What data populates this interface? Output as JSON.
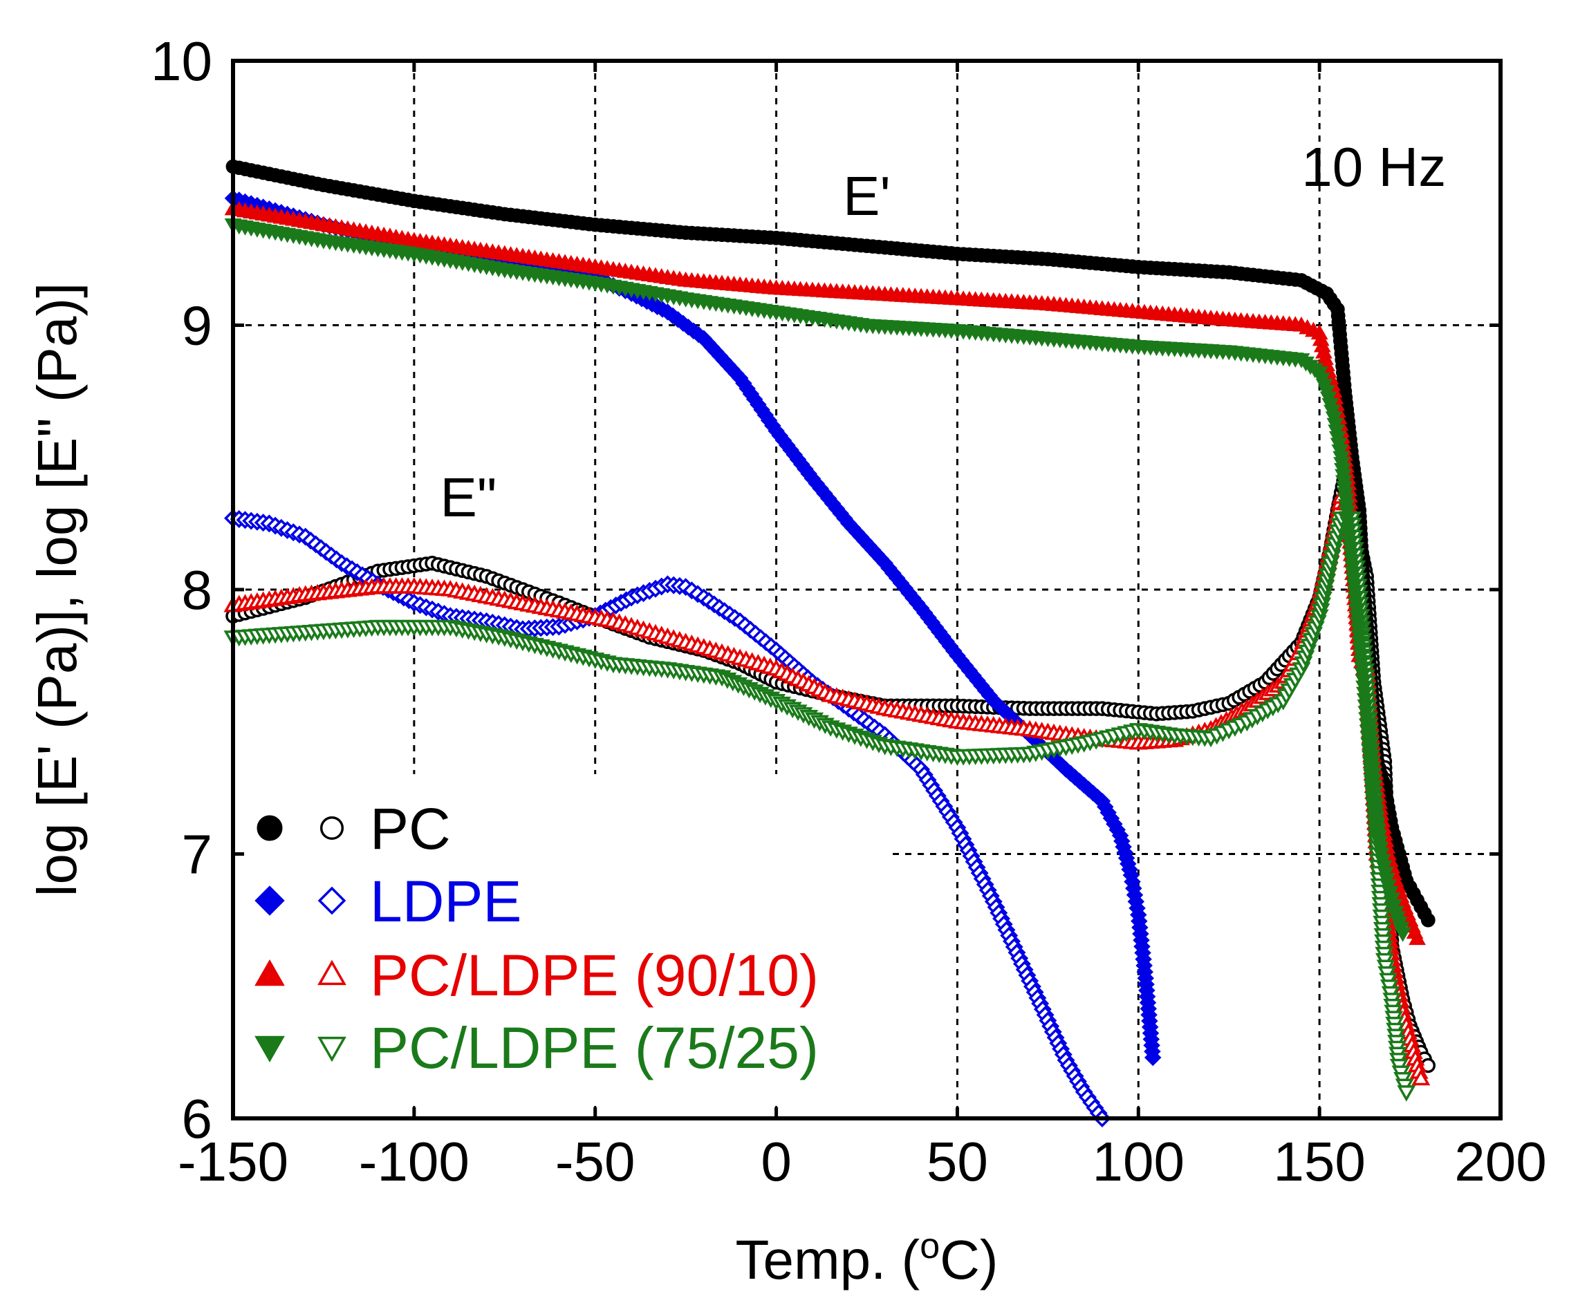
{
  "chart_data": {
    "type": "scatter",
    "title": "",
    "xlabel": "Temp. (",
    "xlabel_sup": "o",
    "xlabel_tail": "C)",
    "ylabel": "log [E' (Pa)], log [E\" (Pa)]",
    "xlim": [
      -150,
      200
    ],
    "ylim": [
      6,
      10
    ],
    "x_ticks": [
      -150,
      -100,
      -50,
      0,
      50,
      100,
      150,
      200
    ],
    "y_ticks": [
      6,
      7,
      8,
      9,
      10
    ],
    "x_tick_labels": [
      "-150",
      "-100",
      "-50",
      "0",
      "50",
      "100",
      "150",
      "200"
    ],
    "y_tick_labels": [
      "6",
      "7",
      "8",
      "9",
      "10"
    ],
    "grid": true,
    "legend_position": "bottom-left",
    "annotations": {
      "storage": "E'",
      "loss": "E\"",
      "frequency": "10 Hz"
    },
    "series": [
      {
        "name": "PC",
        "color": "#000000",
        "marker": "circle",
        "E_storage": [
          [
            -150,
            9.6
          ],
          [
            -125,
            9.53
          ],
          [
            -100,
            9.47
          ],
          [
            -75,
            9.42
          ],
          [
            -50,
            9.38
          ],
          [
            -25,
            9.35
          ],
          [
            0,
            9.33
          ],
          [
            25,
            9.3
          ],
          [
            50,
            9.27
          ],
          [
            75,
            9.25
          ],
          [
            100,
            9.22
          ],
          [
            125,
            9.2
          ],
          [
            145,
            9.17
          ],
          [
            152,
            9.12
          ],
          [
            155,
            9.06
          ],
          [
            157,
            8.75
          ],
          [
            159,
            8.5
          ],
          [
            161,
            8.3
          ],
          [
            162,
            8.05
          ],
          [
            164,
            7.68
          ],
          [
            166,
            7.35
          ],
          [
            168,
            7.25
          ],
          [
            170,
            7.1
          ],
          [
            172,
            7.0
          ],
          [
            174,
            6.9
          ],
          [
            176,
            6.85
          ],
          [
            178,
            6.8
          ],
          [
            180,
            6.75
          ]
        ],
        "E_loss": [
          [
            -150,
            7.9
          ],
          [
            -130,
            7.97
          ],
          [
            -110,
            8.07
          ],
          [
            -95,
            8.1
          ],
          [
            -80,
            8.05
          ],
          [
            -70,
            8.0
          ],
          [
            -60,
            7.95
          ],
          [
            -45,
            7.87
          ],
          [
            -35,
            7.82
          ],
          [
            -20,
            7.77
          ],
          [
            -10,
            7.72
          ],
          [
            0,
            7.65
          ],
          [
            15,
            7.6
          ],
          [
            30,
            7.56
          ],
          [
            50,
            7.56
          ],
          [
            70,
            7.55
          ],
          [
            90,
            7.55
          ],
          [
            105,
            7.53
          ],
          [
            115,
            7.54
          ],
          [
            125,
            7.57
          ],
          [
            135,
            7.65
          ],
          [
            145,
            7.8
          ],
          [
            150,
            7.97
          ],
          [
            153,
            8.15
          ],
          [
            155,
            8.3
          ],
          [
            158,
            8.5
          ],
          [
            160,
            8.25
          ],
          [
            163,
            8.05
          ],
          [
            165,
            7.65
          ],
          [
            168,
            7.35
          ],
          [
            170,
            6.65
          ],
          [
            173,
            6.45
          ],
          [
            175,
            6.35
          ],
          [
            178,
            6.25
          ],
          [
            180,
            6.2
          ]
        ]
      },
      {
        "name": "LDPE",
        "color": "#0000e6",
        "marker": "diamond",
        "E_storage": [
          [
            -150,
            9.48
          ],
          [
            -125,
            9.38
          ],
          [
            -100,
            9.3
          ],
          [
            -75,
            9.24
          ],
          [
            -50,
            9.18
          ],
          [
            -40,
            9.12
          ],
          [
            -30,
            9.05
          ],
          [
            -20,
            8.95
          ],
          [
            -10,
            8.8
          ],
          [
            0,
            8.6
          ],
          [
            10,
            8.42
          ],
          [
            20,
            8.25
          ],
          [
            30,
            8.1
          ],
          [
            40,
            7.93
          ],
          [
            50,
            7.75
          ],
          [
            60,
            7.58
          ],
          [
            70,
            7.45
          ],
          [
            80,
            7.32
          ],
          [
            90,
            7.2
          ],
          [
            95,
            7.07
          ],
          [
            98,
            6.92
          ],
          [
            100,
            6.77
          ],
          [
            102,
            6.53
          ],
          [
            104,
            6.23
          ]
        ],
        "E_loss": [
          [
            -150,
            8.27
          ],
          [
            -140,
            8.25
          ],
          [
            -130,
            8.2
          ],
          [
            -120,
            8.1
          ],
          [
            -110,
            8.02
          ],
          [
            -100,
            7.95
          ],
          [
            -90,
            7.9
          ],
          [
            -80,
            7.88
          ],
          [
            -70,
            7.85
          ],
          [
            -60,
            7.86
          ],
          [
            -50,
            7.9
          ],
          [
            -40,
            7.97
          ],
          [
            -30,
            8.02
          ],
          [
            -25,
            8.01
          ],
          [
            -20,
            7.97
          ],
          [
            -10,
            7.88
          ],
          [
            0,
            7.77
          ],
          [
            10,
            7.65
          ],
          [
            20,
            7.55
          ],
          [
            30,
            7.45
          ],
          [
            40,
            7.32
          ],
          [
            50,
            7.1
          ],
          [
            60,
            6.82
          ],
          [
            70,
            6.52
          ],
          [
            80,
            6.22
          ],
          [
            85,
            6.1
          ],
          [
            90,
            6.0
          ]
        ]
      },
      {
        "name": "PC/LDPE (90/10)",
        "color": "#e60000",
        "marker": "triangle-up",
        "E_storage": [
          [
            -150,
            9.44
          ],
          [
            -125,
            9.38
          ],
          [
            -100,
            9.32
          ],
          [
            -75,
            9.27
          ],
          [
            -50,
            9.22
          ],
          [
            -25,
            9.17
          ],
          [
            0,
            9.14
          ],
          [
            25,
            9.12
          ],
          [
            50,
            9.1
          ],
          [
            75,
            9.08
          ],
          [
            100,
            9.05
          ],
          [
            125,
            9.02
          ],
          [
            145,
            9.0
          ],
          [
            150,
            8.97
          ],
          [
            152,
            8.85
          ],
          [
            154,
            8.75
          ],
          [
            156,
            8.6
          ],
          [
            158,
            8.4
          ],
          [
            160,
            8.05
          ],
          [
            161,
            7.75
          ],
          [
            163,
            7.68
          ],
          [
            165,
            7.35
          ],
          [
            167,
            7.15
          ],
          [
            169,
            7.0
          ],
          [
            171,
            6.9
          ],
          [
            173,
            6.82
          ],
          [
            175,
            6.75
          ],
          [
            177,
            6.68
          ]
        ],
        "E_loss": [
          [
            -150,
            7.94
          ],
          [
            -130,
            7.98
          ],
          [
            -110,
            8.01
          ],
          [
            -100,
            8.01
          ],
          [
            -90,
            8.0
          ],
          [
            -75,
            7.96
          ],
          [
            -60,
            7.92
          ],
          [
            -45,
            7.88
          ],
          [
            -30,
            7.82
          ],
          [
            -15,
            7.76
          ],
          [
            0,
            7.7
          ],
          [
            15,
            7.6
          ],
          [
            30,
            7.55
          ],
          [
            50,
            7.5
          ],
          [
            70,
            7.47
          ],
          [
            85,
            7.44
          ],
          [
            100,
            7.42
          ],
          [
            110,
            7.43
          ],
          [
            120,
            7.47
          ],
          [
            130,
            7.55
          ],
          [
            140,
            7.65
          ],
          [
            145,
            7.78
          ],
          [
            150,
            7.97
          ],
          [
            153,
            8.15
          ],
          [
            156,
            8.35
          ],
          [
            158,
            8.3
          ],
          [
            161,
            7.8
          ],
          [
            163,
            7.7
          ],
          [
            166,
            7.0
          ],
          [
            168,
            6.85
          ],
          [
            170,
            6.6
          ],
          [
            173,
            6.4
          ],
          [
            175,
            6.3
          ],
          [
            177,
            6.2
          ],
          [
            178,
            6.15
          ]
        ]
      },
      {
        "name": "PC/LDPE (75/25)",
        "color": "#1a7a1a",
        "marker": "triangle-down",
        "E_storage": [
          [
            -150,
            9.38
          ],
          [
            -125,
            9.32
          ],
          [
            -100,
            9.27
          ],
          [
            -75,
            9.21
          ],
          [
            -50,
            9.16
          ],
          [
            -25,
            9.1
          ],
          [
            0,
            9.05
          ],
          [
            25,
            9.0
          ],
          [
            50,
            8.98
          ],
          [
            75,
            8.95
          ],
          [
            100,
            8.92
          ],
          [
            125,
            8.9
          ],
          [
            145,
            8.87
          ],
          [
            150,
            8.82
          ],
          [
            152,
            8.75
          ],
          [
            154,
            8.65
          ],
          [
            156,
            8.5
          ],
          [
            158,
            8.25
          ],
          [
            160,
            7.97
          ],
          [
            162,
            7.68
          ],
          [
            165,
            7.2
          ],
          [
            167,
            7.0
          ],
          [
            169,
            6.88
          ],
          [
            171,
            6.78
          ],
          [
            173,
            6.7
          ]
        ],
        "E_loss": [
          [
            -150,
            7.82
          ],
          [
            -130,
            7.84
          ],
          [
            -110,
            7.86
          ],
          [
            -90,
            7.86
          ],
          [
            -75,
            7.82
          ],
          [
            -60,
            7.77
          ],
          [
            -45,
            7.72
          ],
          [
            -30,
            7.7
          ],
          [
            -15,
            7.67
          ],
          [
            0,
            7.58
          ],
          [
            15,
            7.48
          ],
          [
            30,
            7.41
          ],
          [
            50,
            7.37
          ],
          [
            70,
            7.38
          ],
          [
            85,
            7.42
          ],
          [
            100,
            7.47
          ],
          [
            110,
            7.45
          ],
          [
            120,
            7.44
          ],
          [
            130,
            7.5
          ],
          [
            140,
            7.58
          ],
          [
            145,
            7.7
          ],
          [
            150,
            7.9
          ],
          [
            153,
            8.1
          ],
          [
            156,
            8.27
          ],
          [
            159,
            8.27
          ],
          [
            161,
            7.97
          ],
          [
            163,
            7.65
          ],
          [
            166,
            7.0
          ],
          [
            168,
            6.6
          ],
          [
            170,
            6.45
          ],
          [
            172,
            6.2
          ],
          [
            174,
            6.1
          ]
        ]
      }
    ]
  }
}
